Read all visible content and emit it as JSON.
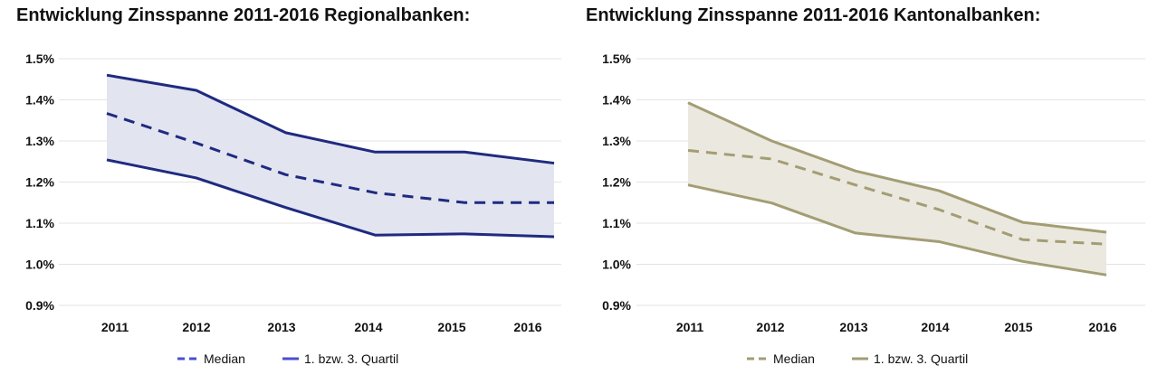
{
  "chart_data": [
    {
      "type": "line",
      "title": "Entwicklung Zinsspanne 2011-2016 Regionalbanken:",
      "categories": [
        "2011",
        "2012",
        "2013",
        "2014",
        "2015",
        "2016"
      ],
      "ylim": [
        0.9,
        1.5
      ],
      "yticks": [
        "1.5%",
        "1.4%",
        "1.3%",
        "1.2%",
        "1.1%",
        "1.0%",
        "0.9%"
      ],
      "grid": true,
      "legend_position": "bottom",
      "color": "#1f2a80",
      "legend_color": "#4a4fd0",
      "band_fill": "#e2e4f0",
      "series": [
        {
          "name": "Median",
          "style": "dashed",
          "values": [
            1.367,
            1.295,
            1.218,
            1.174,
            1.15,
            1.15
          ]
        },
        {
          "name": "1. bzw. 3. Quartil",
          "style": "solid",
          "values": [
            1.46,
            1.423,
            1.32,
            1.273,
            1.273,
            1.246
          ]
        },
        {
          "style": "solid",
          "values": [
            1.254,
            1.21,
            1.138,
            1.071,
            1.074,
            1.067
          ]
        }
      ]
    },
    {
      "type": "line",
      "title": "Entwicklung Zinsspanne 2011-2016 Kantonalbanken:",
      "categories": [
        "2011",
        "2012",
        "2013",
        "2014",
        "2015",
        "2016"
      ],
      "ylim": [
        0.9,
        1.5
      ],
      "yticks": [
        "1.5%",
        "1.4%",
        "1.3%",
        "1.2%",
        "1.1%",
        "1.0%",
        "0.9%"
      ],
      "grid": true,
      "legend_position": "bottom",
      "color": "#a39d74",
      "legend_color": "#a39d74",
      "band_fill": "#ebe8df",
      "series": [
        {
          "name": "Median",
          "style": "dashed",
          "values": [
            1.277,
            1.256,
            1.193,
            1.133,
            1.06,
            1.049
          ]
        },
        {
          "name": "1. bzw. 3. Quartil",
          "style": "solid",
          "values": [
            1.393,
            1.3,
            1.227,
            1.179,
            1.102,
            1.078
          ]
        },
        {
          "style": "solid",
          "values": [
            1.193,
            1.149,
            1.076,
            1.055,
            1.007,
            0.974
          ]
        }
      ]
    }
  ]
}
